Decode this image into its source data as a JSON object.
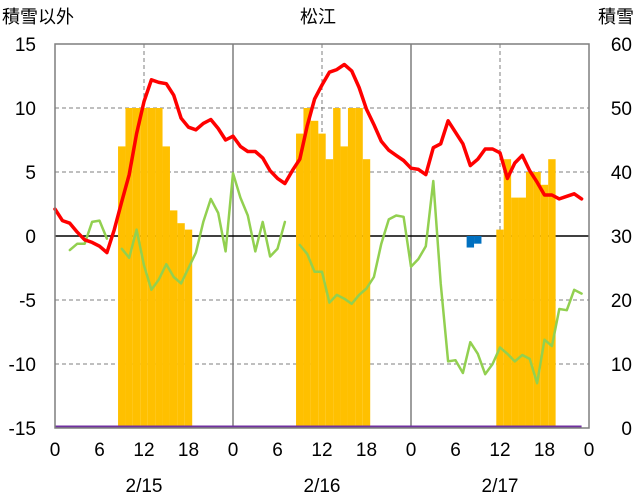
{
  "chart_data": {
    "type": "line",
    "title": "松江",
    "left_axis_label": "積雪以外",
    "right_axis_label": "積雪",
    "left_ylim": [
      -15,
      15
    ],
    "left_yticks": [
      -15,
      -10,
      -5,
      0,
      5,
      10,
      15
    ],
    "right_ylim": [
      0,
      60
    ],
    "right_yticks": [
      0,
      10,
      20,
      30,
      40,
      50,
      60
    ],
    "xlim": [
      0,
      71
    ],
    "x_tick_hours": [
      0,
      6,
      12,
      18,
      24,
      30,
      36,
      42,
      48,
      54,
      60,
      66,
      72
    ],
    "x_tick_labels": [
      "0",
      "6",
      "12",
      "18",
      "0",
      "6",
      "12",
      "18",
      "0",
      "6",
      "12",
      "18",
      "0"
    ],
    "date_labels": [
      {
        "hour": 12,
        "text": "2/15"
      },
      {
        "hour": 36,
        "text": "2/16"
      },
      {
        "hour": 60,
        "text": "2/17"
      }
    ],
    "grid": true,
    "colors": {
      "temperature": "#ff0000",
      "green_series": "#92d050",
      "snow_depth": "#ffc000",
      "blue_series": "#0070c0",
      "purple_series": "#7030a0",
      "grid": "#7f7f7f"
    },
    "series": [
      {
        "key": "temperature",
        "axis": "left",
        "values": [
          2.1,
          1.2,
          1.0,
          0.3,
          -0.3,
          -0.5,
          -0.8,
          -1.3,
          0.5,
          2.7,
          4.8,
          8.0,
          10.5,
          12.2,
          12.0,
          11.9,
          11.0,
          9.2,
          8.5,
          8.3,
          8.8,
          9.1,
          8.4,
          7.5,
          7.8,
          7.0,
          6.6,
          6.6,
          6.1,
          5.1,
          4.5,
          4.1,
          5.1,
          6.0,
          8.6,
          10.7,
          11.8,
          12.8,
          13.0,
          13.4,
          12.9,
          11.6,
          9.9,
          8.7,
          7.4,
          6.7,
          6.3,
          5.9,
          5.3,
          5.2,
          4.8,
          6.9,
          7.2,
          9.0,
          8.1,
          7.2,
          5.5,
          6.0,
          6.8,
          6.8,
          6.5,
          4.5,
          5.7,
          6.3,
          5.1,
          4.2,
          3.2,
          3.2,
          2.9,
          3.1,
          3.3,
          2.9
        ]
      },
      {
        "key": "green_series",
        "axis": "left",
        "values": [
          null,
          null,
          -1.1,
          -0.6,
          -0.6,
          1.1,
          1.2,
          -0.2,
          null,
          -1.0,
          -1.7,
          0.5,
          -2.3,
          -4.2,
          -3.4,
          -2.2,
          -3.2,
          -3.7,
          -2.5,
          -1.3,
          1.1,
          2.9,
          1.8,
          -1.2,
          4.9,
          3.0,
          1.6,
          -1.2,
          1.1,
          -1.6,
          -1.0,
          1.1,
          null,
          -0.7,
          -1.4,
          -2.8,
          -2.8,
          -5.2,
          -4.6,
          -4.9,
          -5.3,
          -4.6,
          -4.1,
          -3.2,
          -0.6,
          1.3,
          1.6,
          1.5,
          -2.4,
          -1.8,
          -0.8,
          4.3,
          -3.7,
          -9.8,
          -9.7,
          -10.7,
          -8.3,
          -9.2,
          -10.8,
          -10.0,
          -8.7,
          -9.2,
          -9.8,
          -9.3,
          -9.6,
          -11.5,
          -8.1,
          -8.6,
          -5.7,
          -5.8,
          -4.2,
          -4.5
        ]
      },
      {
        "key": "snow_depth",
        "axis": "right",
        "type": "bar",
        "values": [
          0,
          0,
          0,
          0,
          0,
          0,
          0,
          0,
          0,
          44,
          50,
          50,
          50,
          50,
          50,
          44,
          34,
          32,
          31,
          0,
          0,
          0,
          0,
          0,
          0,
          0,
          0,
          0,
          0,
          0,
          0,
          0,
          0,
          46,
          50,
          48,
          46,
          42,
          50,
          44,
          50,
          50,
          42,
          0,
          0,
          0,
          0,
          0,
          0,
          0,
          0,
          0,
          0,
          0,
          0,
          0,
          0,
          0,
          0,
          0,
          31,
          42,
          36,
          36,
          40,
          40,
          38,
          42,
          0,
          0,
          0,
          0
        ]
      },
      {
        "key": "blue_series",
        "axis": "left",
        "type": "bar",
        "start_hour": 56,
        "values": [
          -0.9,
          -0.6
        ]
      },
      {
        "key": "purple_series",
        "axis": "left",
        "start_hour": 0,
        "end_hour": 71,
        "value": -15
      }
    ]
  }
}
